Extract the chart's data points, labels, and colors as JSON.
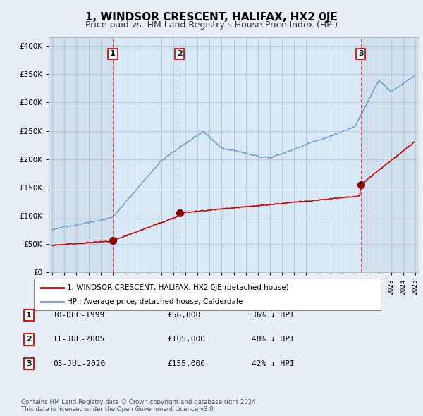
{
  "title": "1, WINDSOR CRESCENT, HALIFAX, HX2 0JE",
  "subtitle": "Price paid vs. HM Land Registry's House Price Index (HPI)",
  "title_fontsize": 11,
  "subtitle_fontsize": 9,
  "ytick_values": [
    0,
    50000,
    100000,
    150000,
    200000,
    250000,
    300000,
    350000,
    400000
  ],
  "ylim": [
    0,
    415000
  ],
  "xlim_start": 1994.7,
  "xlim_end": 2025.3,
  "background_color": "#e8eef5",
  "plot_bg_color": "#dce8f5",
  "plot_bg_between_sales": "#dce8f5",
  "outside_sales_bg": "#e4edf5",
  "red_line_color": "#cc0000",
  "blue_line_color": "#6699cc",
  "sale_marker_color": "#880000",
  "vline_color": "#dd4444",
  "grid_color": "#bbbbcc",
  "legend_bg": "#ffffff",
  "legend_label_red": "1, WINDSOR CRESCENT, HALIFAX, HX2 0JE (detached house)",
  "legend_label_blue": "HPI: Average price, detached house, Calderdale",
  "footer_text": "Contains HM Land Registry data © Crown copyright and database right 2024.\nThis data is licensed under the Open Government Licence v3.0.",
  "sales": [
    {
      "num": 1,
      "x": 2000.0,
      "price": 56000,
      "label": "10-DEC-1999",
      "price_str": "£56,000",
      "hpi_str": "36% ↓ HPI"
    },
    {
      "num": 2,
      "x": 2005.53,
      "price": 105000,
      "label": "11-JUL-2005",
      "price_str": "£105,000",
      "hpi_str": "48% ↓ HPI"
    },
    {
      "num": 3,
      "x": 2020.5,
      "price": 155000,
      "label": "03-JUL-2020",
      "price_str": "£155,000",
      "hpi_str": "42% ↓ HPI"
    }
  ]
}
